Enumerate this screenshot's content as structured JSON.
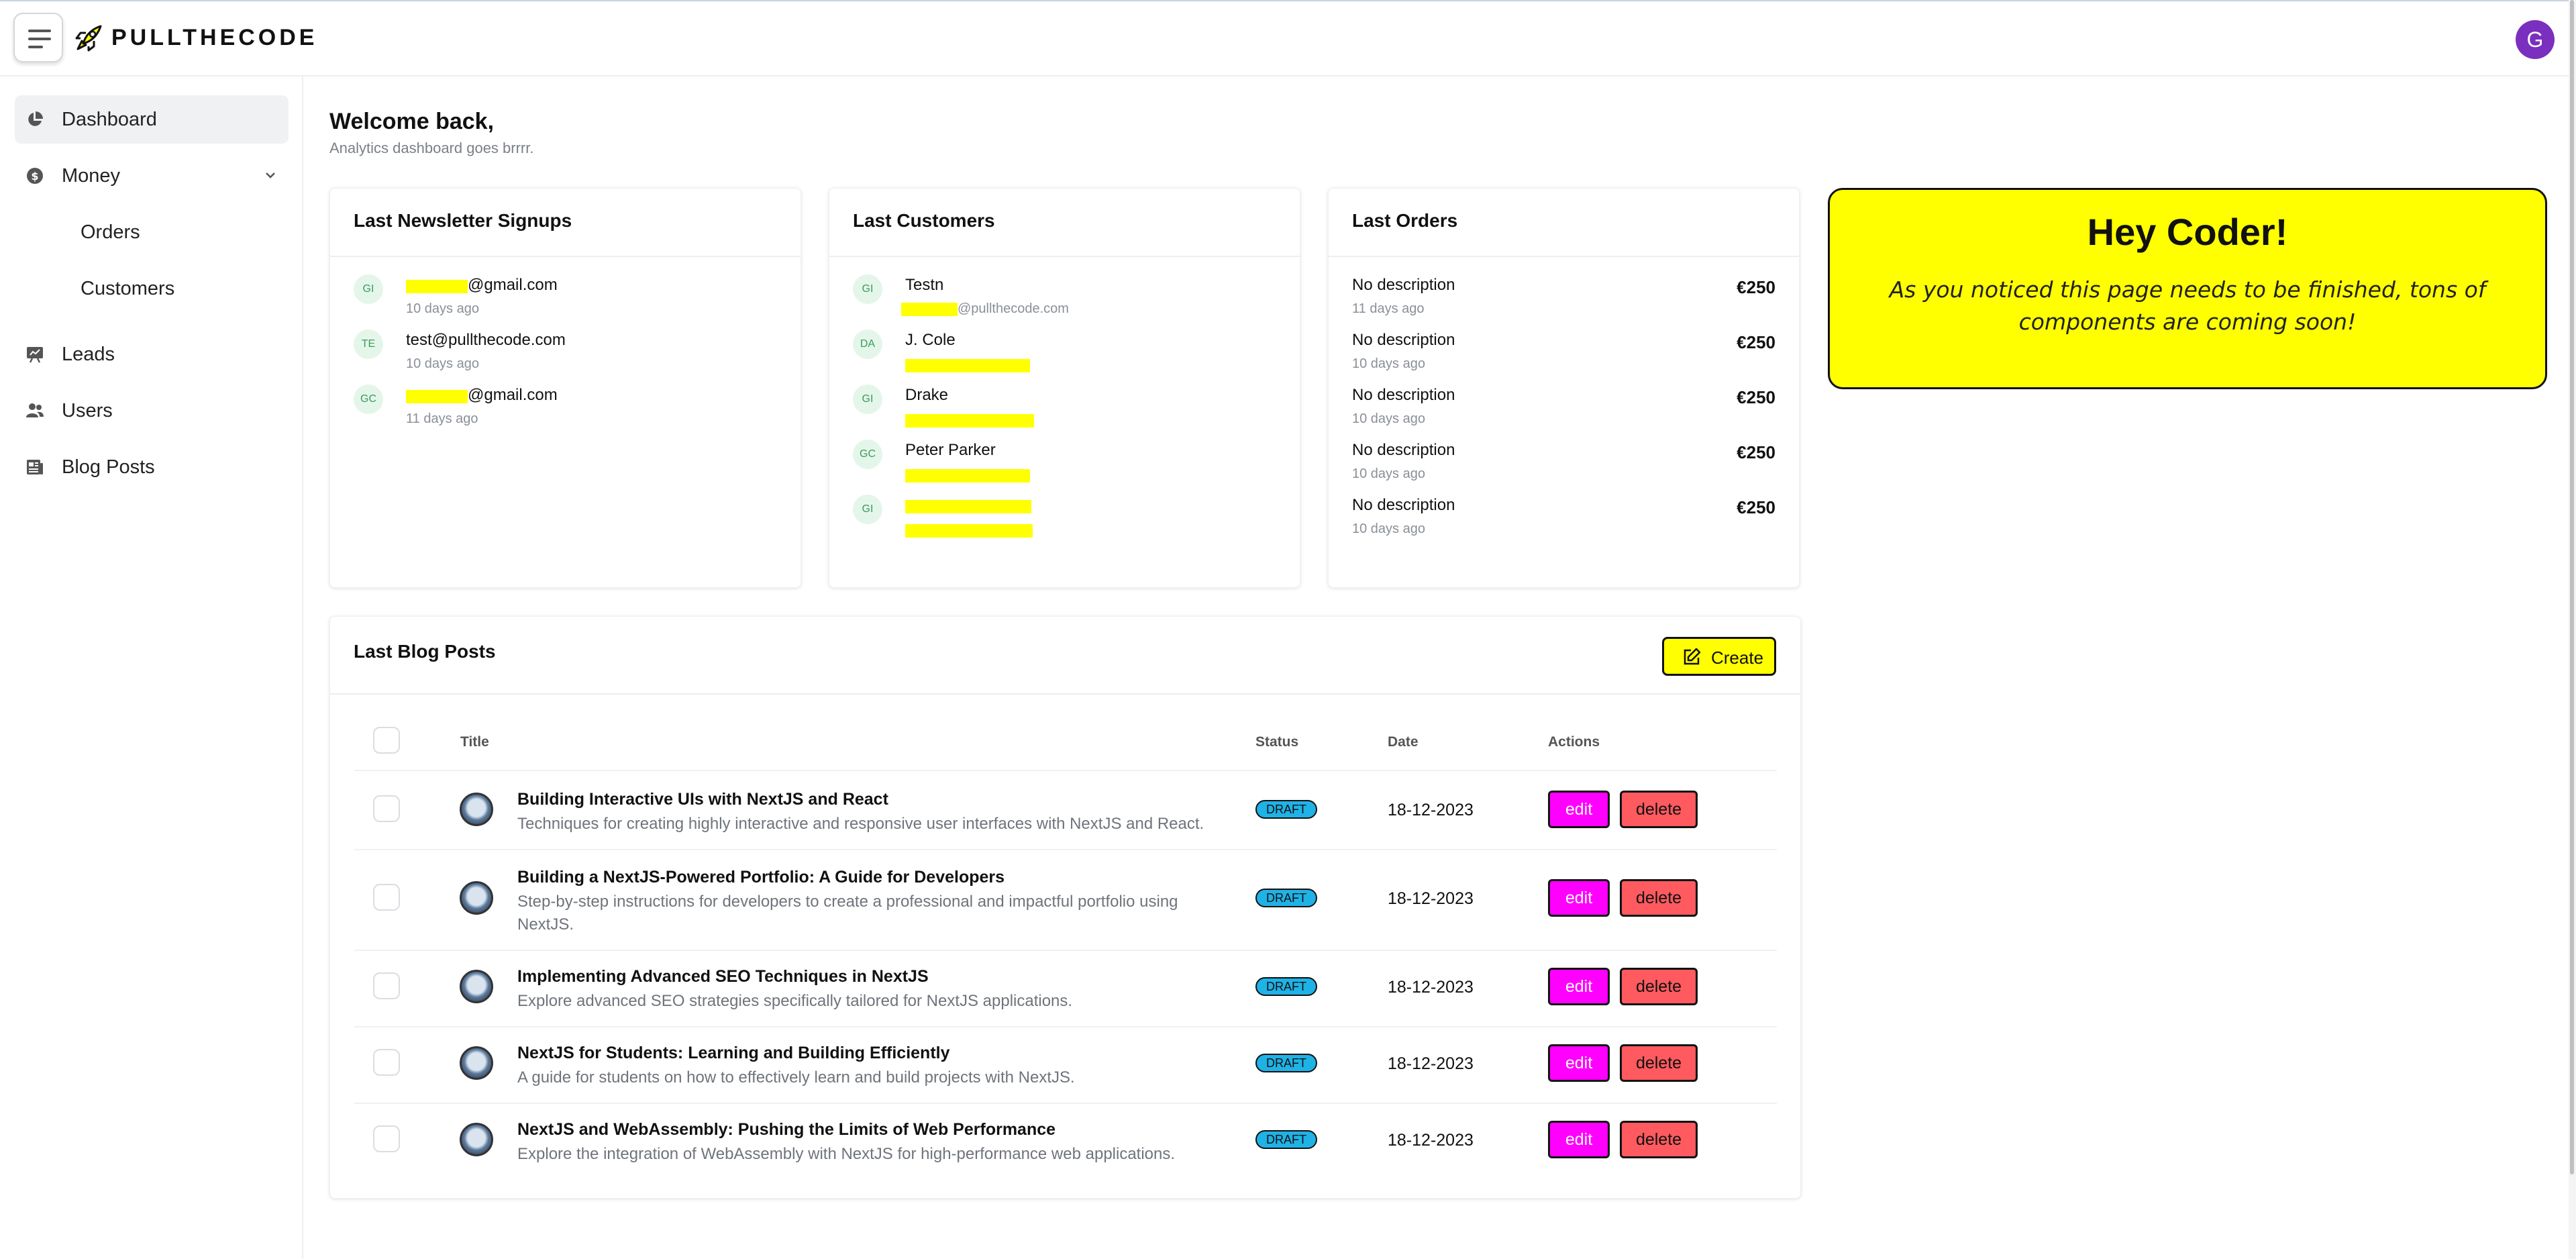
{
  "header": {
    "brand": "PULLTHECODE",
    "avatar_initial": "G"
  },
  "sidebar": {
    "items": [
      {
        "label": "Dashboard",
        "icon": "pie-chart-icon",
        "active": true
      },
      {
        "label": "Money",
        "icon": "dollar-circle-icon"
      },
      {
        "label": "Orders",
        "icon": ""
      },
      {
        "label": "Customers",
        "icon": ""
      },
      {
        "label": "Leads",
        "icon": "presentation-icon"
      },
      {
        "label": "Users",
        "icon": "users-icon"
      },
      {
        "label": "Blog Posts",
        "icon": "newspaper-icon"
      }
    ]
  },
  "welcome": {
    "title": "Welcome back,",
    "subtitle": "Analytics dashboard goes brrrr."
  },
  "newsletter": {
    "title": "Last Newsletter Signups",
    "rows": [
      {
        "initials": "GI",
        "email": "@gmail.com",
        "time": "10 days ago"
      },
      {
        "initials": "TE",
        "email": "test@pullthecode.com",
        "time": "10 days ago"
      },
      {
        "initials": "GC",
        "email": "@gmail.com",
        "time": "11 days ago"
      }
    ]
  },
  "customers": {
    "title": "Last Customers",
    "rows": [
      {
        "initials": "GI",
        "name": "Testn",
        "email": "@pullthecode.com"
      },
      {
        "initials": "DA",
        "name": "J. Cole",
        "email": ""
      },
      {
        "initials": "GI",
        "name": "Drake",
        "email": ""
      },
      {
        "initials": "GC",
        "name": "Peter Parker",
        "email": ""
      },
      {
        "initials": "GI",
        "name": "",
        "email": ""
      }
    ]
  },
  "orders": {
    "title": "Last Orders",
    "rows": [
      {
        "desc": "No description",
        "time": "11 days ago",
        "price": "€250"
      },
      {
        "desc": "No description",
        "time": "10 days ago",
        "price": "€250"
      },
      {
        "desc": "No description",
        "time": "10 days ago",
        "price": "€250"
      },
      {
        "desc": "No description",
        "time": "10 days ago",
        "price": "€250"
      },
      {
        "desc": "No description",
        "time": "10 days ago",
        "price": "€250"
      }
    ]
  },
  "promo": {
    "title": "Hey Coder!",
    "text": "As you noticed this page needs to be finished, tons of components are coming soon!"
  },
  "blog": {
    "title": "Last Blog Posts",
    "create_label": "Create",
    "columns": {
      "title": "Title",
      "status": "Status",
      "date": "Date",
      "actions": "Actions"
    },
    "edit_label": "edit",
    "delete_label": "delete",
    "posts": [
      {
        "title": "Building Interactive UIs with NextJS and React",
        "desc": "Techniques for creating highly interactive and responsive user interfaces with NextJS and React.",
        "status": "DRAFT",
        "date": "18-12-2023"
      },
      {
        "title": "Building a NextJS-Powered Portfolio: A Guide for Developers",
        "desc": "Step-by-step instructions for developers to create a professional and impactful portfolio using NextJS.",
        "status": "DRAFT",
        "date": "18-12-2023"
      },
      {
        "title": "Implementing Advanced SEO Techniques in NextJS",
        "desc": "Explore advanced SEO strategies specifically tailored for NextJS applications.",
        "status": "DRAFT",
        "date": "18-12-2023"
      },
      {
        "title": "NextJS for Students: Learning and Building Efficiently",
        "desc": "A guide for students on how to effectively learn and build projects with NextJS.",
        "status": "DRAFT",
        "date": "18-12-2023"
      },
      {
        "title": "NextJS and WebAssembly: Pushing the Limits of Web Performance",
        "desc": "Explore the integration of WebAssembly with NextJS for high-performance web applications.",
        "status": "DRAFT",
        "date": "18-12-2023"
      }
    ]
  },
  "colors": {
    "accent_yellow": "#ffff00",
    "edit_magenta": "#ff00ff",
    "delete_red": "#ff5a5f",
    "draft_blue": "#1fb2e6",
    "avatar_purple": "#7b2fbe"
  }
}
